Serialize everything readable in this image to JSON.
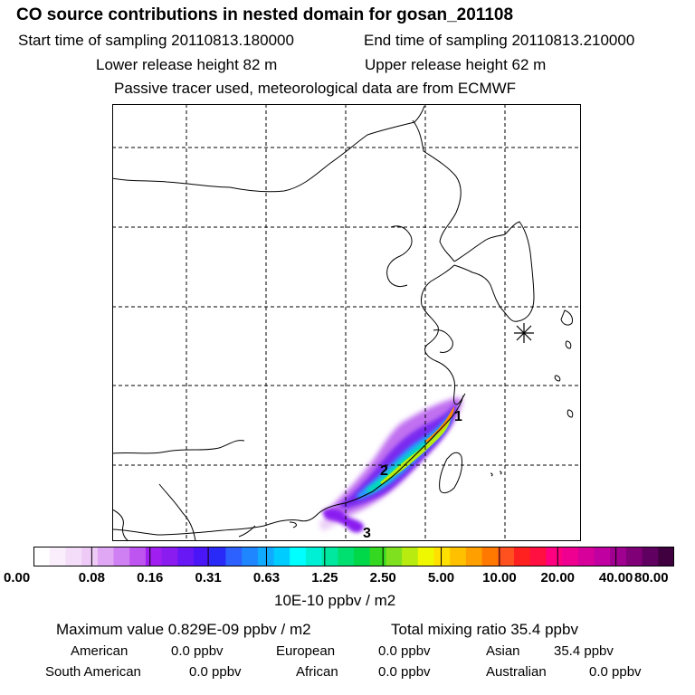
{
  "title": "CO  source contributions in nested domain for gosan_201108",
  "header": {
    "start_time": "Start time of sampling 20110813.180000",
    "end_time": "End time of sampling 20110813.210000",
    "lower_release": "Lower release height   82 m",
    "upper_release": "Upper release height   62 m",
    "tracer_note": "Passive tracer used, meteorological data are from ECMWF"
  },
  "map": {
    "markers": [
      {
        "label": "1"
      },
      {
        "label": "2"
      },
      {
        "label": "3"
      }
    ],
    "receptor_symbol": "asterisk-icon"
  },
  "colorbar": {
    "ticks": [
      "0.00",
      "0.08",
      "0.16",
      "0.31",
      "0.63",
      "1.25",
      "2.50",
      "5.00",
      "10.00",
      "20.00",
      "40.00",
      "80.00"
    ],
    "colors": [
      "#ffffff",
      "#fbeefc",
      "#f4ddf9",
      "#eecbf7",
      "#e0a8f4",
      "#cf80f2",
      "#bf55f0",
      "#a01ff0",
      "#8a1cf0",
      "#6818f5",
      "#4a16f8",
      "#2a2af8",
      "#2c60ff",
      "#1f86ff",
      "#10aaff",
      "#00ccff",
      "#00ffff",
      "#00f0d6",
      "#00e8a0",
      "#00e070",
      "#00d84a",
      "#35d820",
      "#7fe020",
      "#b8ec10",
      "#f0f800",
      "#ffe000",
      "#ffc000",
      "#ffa000",
      "#ff7800",
      "#ff5020",
      "#ff2020",
      "#ff1040",
      "#ff0080",
      "#f00090",
      "#d8009a",
      "#c000a0",
      "#a00090",
      "#800078",
      "#600060",
      "#400040"
    ],
    "units": "10E-10 ppbv / m2"
  },
  "summary": {
    "max_value": "Maximum value  0.829E-09 ppbv / m2",
    "total_mixing": "Total mixing ratio       35.4 ppbv",
    "regions": [
      {
        "name": "American",
        "value": "0.0 ppbv"
      },
      {
        "name": "European",
        "value": "0.0 ppbv"
      },
      {
        "name": "Asian",
        "value": "35.4 ppbv"
      },
      {
        "name": "South American",
        "value": "0.0 ppbv"
      },
      {
        "name": "African",
        "value": "0.0 ppbv"
      },
      {
        "name": "Australian",
        "value": "0.0 ppbv"
      }
    ]
  }
}
